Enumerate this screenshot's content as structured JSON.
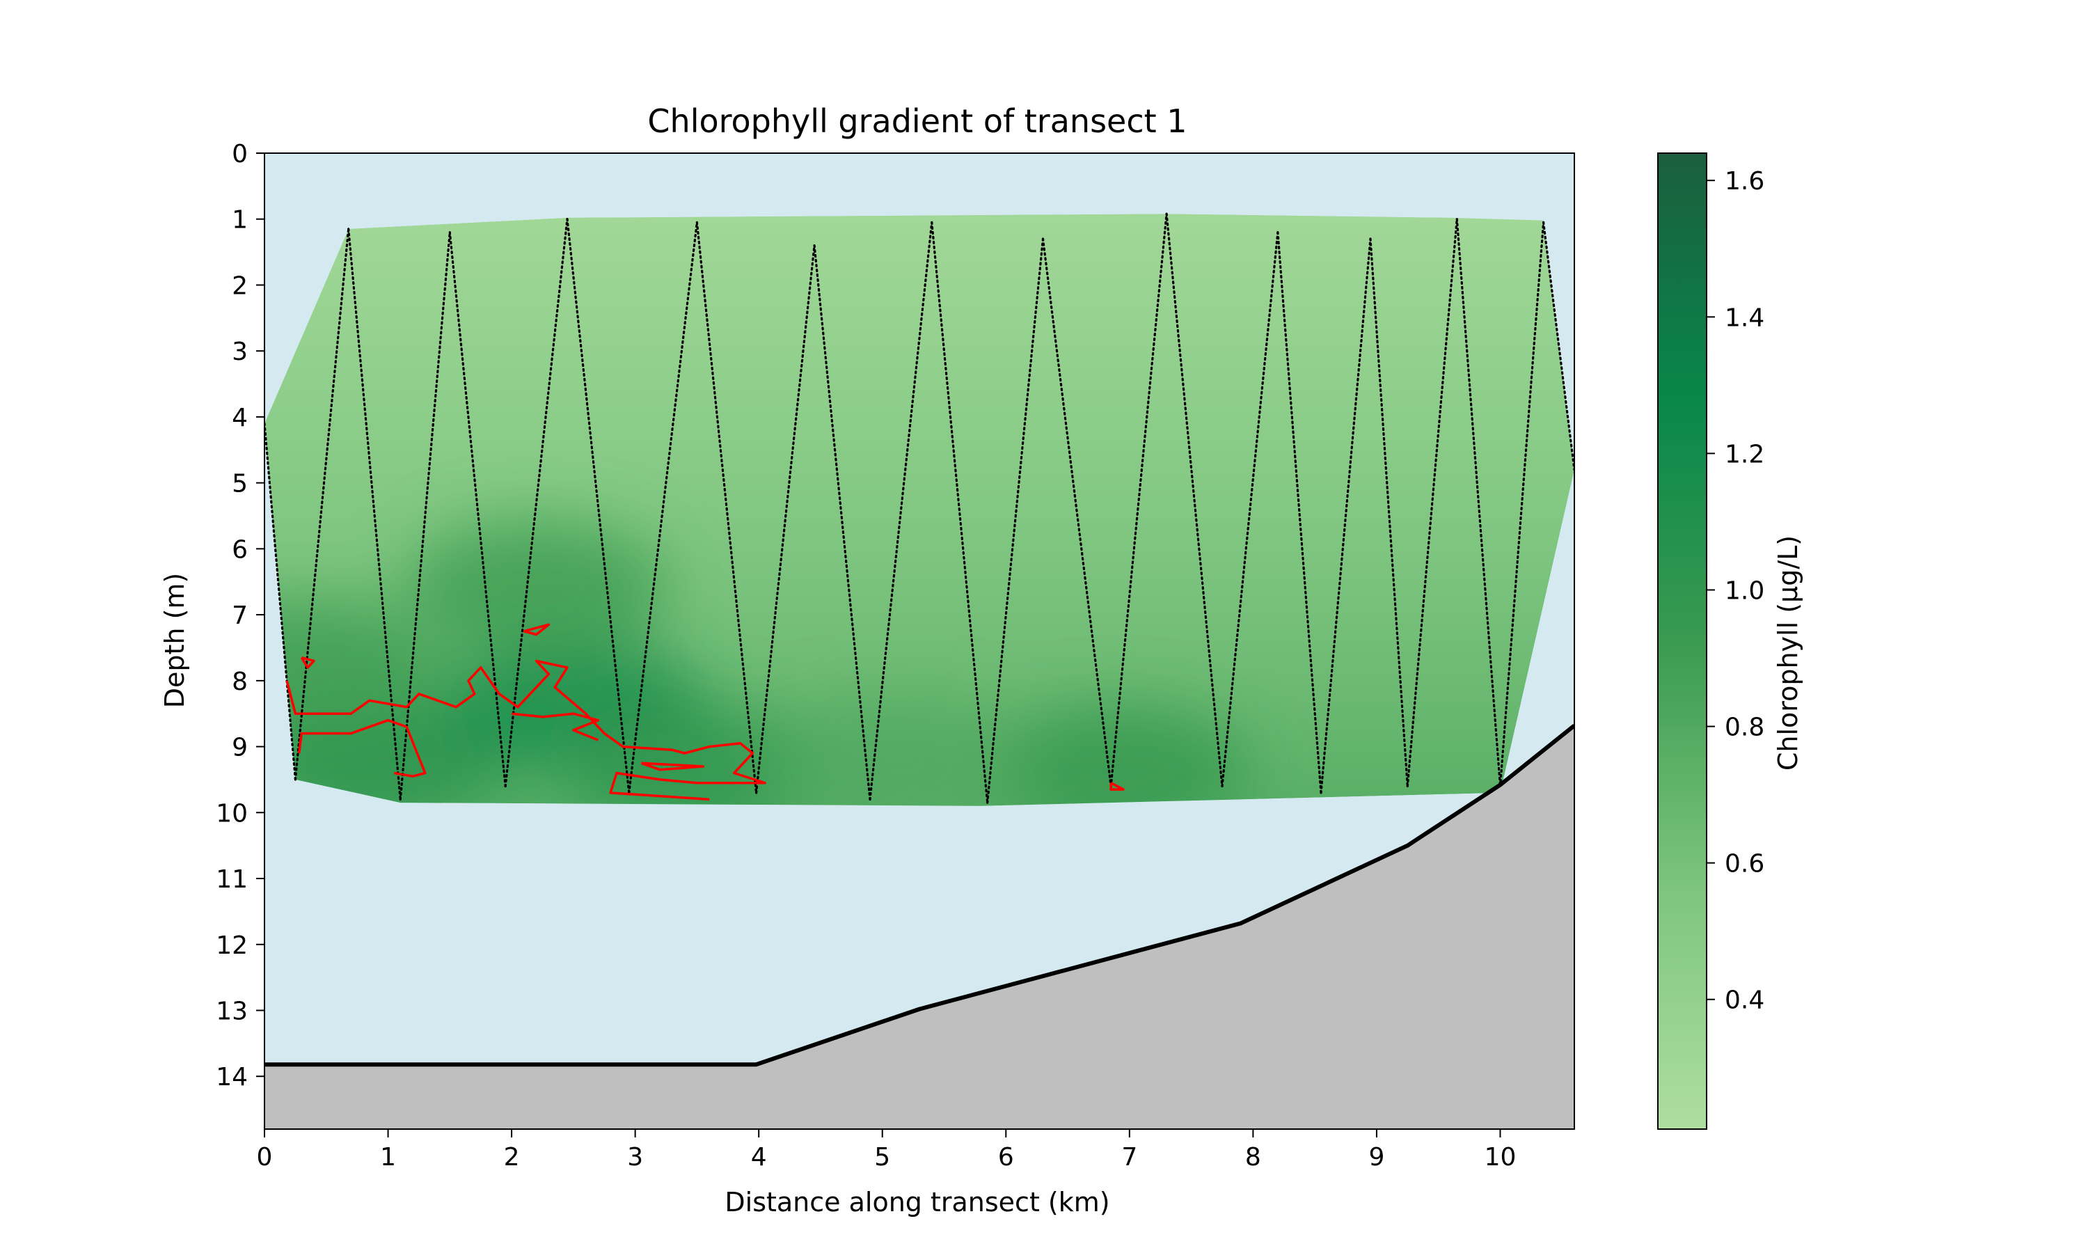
{
  "chart_data": {
    "type": "heatmap",
    "title": "Chlorophyll gradient of transect 1",
    "xlabel": "Distance along transect (km)",
    "ylabel": "Depth (m)",
    "xlim": [
      0,
      10.6
    ],
    "ylim": [
      14.8,
      0
    ],
    "x_ticks": [
      "0",
      "1",
      "2",
      "3",
      "4",
      "5",
      "6",
      "7",
      "8",
      "9",
      "10"
    ],
    "y_ticks": [
      "0",
      "1",
      "2",
      "3",
      "4",
      "5",
      "6",
      "7",
      "8",
      "9",
      "10",
      "11",
      "12",
      "13",
      "14"
    ],
    "grid": false,
    "colorbar": {
      "label": "Chlorophyll (µg/L)",
      "range": [
        0.21,
        1.64
      ],
      "ticks": [
        "0.4",
        "0.6",
        "0.8",
        "1.0",
        "1.2",
        "1.4",
        "1.6"
      ],
      "colormap": [
        "#aedea0",
        "#7cc47e",
        "#3a9a50",
        "#08874a",
        "#1b5e3e"
      ]
    },
    "colors": {
      "water": "#d4eaf0",
      "seabed": "#bfbfbf",
      "bathymetry_line": "#000000",
      "contour": "#ff0000",
      "profile_track": "#000000"
    },
    "chlorophyll_field": {
      "outline": [
        [
          0.0,
          4.1
        ],
        [
          0.68,
          1.15
        ],
        [
          2.45,
          0.98
        ],
        [
          7.3,
          0.92
        ],
        [
          9.6,
          0.98
        ],
        [
          10.35,
          1.02
        ],
        [
          10.6,
          4.8
        ],
        [
          10.0,
          9.7
        ],
        [
          5.8,
          9.9
        ],
        [
          1.1,
          9.85
        ],
        [
          0.25,
          9.5
        ],
        [
          0.0,
          4.1
        ]
      ],
      "background_value": 0.45,
      "gradient": [
        {
          "depth": 1.0,
          "value": 0.3
        },
        {
          "depth": 4.0,
          "value": 0.45
        },
        {
          "depth": 6.0,
          "value": 0.55
        },
        {
          "depth": 8.0,
          "value": 0.65
        },
        {
          "depth": 9.8,
          "value": 0.75
        }
      ],
      "hotspots": [
        {
          "x": 0.9,
          "depth": 9.2,
          "value": 1.05
        },
        {
          "x": 2.5,
          "depth": 8.4,
          "value": 1.15
        },
        {
          "x": 2.2,
          "depth": 6.6,
          "value": 0.9
        },
        {
          "x": 3.5,
          "depth": 9.4,
          "value": 1.0
        },
        {
          "x": 0.35,
          "depth": 7.8,
          "value": 0.9
        },
        {
          "x": 6.9,
          "depth": 9.4,
          "value": 0.95
        },
        {
          "x": 5.1,
          "depth": 9.3,
          "value": 0.8
        }
      ]
    },
    "profile_track": {
      "style": "dotted",
      "points": [
        [
          0.0,
          4.1
        ],
        [
          0.25,
          9.5
        ],
        [
          0.68,
          1.15
        ],
        [
          1.1,
          9.8
        ],
        [
          1.5,
          1.2
        ],
        [
          1.95,
          9.6
        ],
        [
          2.45,
          1.0
        ],
        [
          2.95,
          9.7
        ],
        [
          3.5,
          1.05
        ],
        [
          3.98,
          9.7
        ],
        [
          4.45,
          1.4
        ],
        [
          4.9,
          9.8
        ],
        [
          5.4,
          1.05
        ],
        [
          5.85,
          9.85
        ],
        [
          6.3,
          1.3
        ],
        [
          6.85,
          9.6
        ],
        [
          7.3,
          0.92
        ],
        [
          7.75,
          9.6
        ],
        [
          8.2,
          1.2
        ],
        [
          8.55,
          9.7
        ],
        [
          8.95,
          1.3
        ],
        [
          9.25,
          9.6
        ],
        [
          9.65,
          1.0
        ],
        [
          10.0,
          9.6
        ],
        [
          10.35,
          1.05
        ],
        [
          10.6,
          4.8
        ]
      ]
    },
    "contour_1_0": {
      "value": 1.0,
      "paths": [
        [
          [
            0.18,
            8.0
          ],
          [
            0.25,
            8.5
          ],
          [
            0.7,
            8.5
          ],
          [
            0.85,
            8.3
          ],
          [
            1.15,
            8.4
          ],
          [
            1.25,
            8.2
          ],
          [
            1.55,
            8.4
          ],
          [
            1.7,
            8.2
          ],
          [
            1.65,
            8.0
          ],
          [
            1.75,
            7.8
          ],
          [
            1.9,
            8.2
          ],
          [
            2.05,
            8.4
          ],
          [
            2.3,
            7.9
          ],
          [
            2.2,
            7.7
          ],
          [
            2.45,
            7.8
          ],
          [
            2.35,
            8.1
          ],
          [
            2.6,
            8.5
          ],
          [
            2.75,
            8.8
          ],
          [
            2.9,
            9.0
          ],
          [
            3.3,
            9.05
          ],
          [
            3.4,
            9.1
          ],
          [
            3.6,
            9.0
          ],
          [
            3.85,
            8.95
          ],
          [
            3.95,
            9.1
          ],
          [
            3.8,
            9.4
          ],
          [
            4.05,
            9.55
          ],
          [
            3.5,
            9.55
          ],
          [
            3.2,
            9.5
          ],
          [
            2.85,
            9.4
          ],
          [
            2.8,
            9.7
          ],
          [
            3.2,
            9.75
          ],
          [
            3.6,
            9.8
          ]
        ],
        [
          [
            0.28,
            9.1
          ],
          [
            0.3,
            8.8
          ],
          [
            0.7,
            8.8
          ],
          [
            1.0,
            8.6
          ],
          [
            1.15,
            8.7
          ],
          [
            1.3,
            9.4
          ],
          [
            1.2,
            9.45
          ],
          [
            1.05,
            9.4
          ]
        ],
        [
          [
            2.0,
            8.5
          ],
          [
            2.25,
            8.55
          ],
          [
            2.5,
            8.5
          ],
          [
            2.7,
            8.6
          ],
          [
            2.5,
            8.75
          ],
          [
            2.7,
            8.9
          ]
        ],
        [
          [
            2.1,
            7.25
          ],
          [
            2.3,
            7.15
          ],
          [
            2.2,
            7.3
          ],
          [
            2.1,
            7.25
          ]
        ],
        [
          [
            0.3,
            7.65
          ],
          [
            0.4,
            7.7
          ],
          [
            0.35,
            7.8
          ],
          [
            0.3,
            7.65
          ]
        ],
        [
          [
            6.85,
            9.55
          ],
          [
            6.95,
            9.65
          ],
          [
            6.85,
            9.65
          ],
          [
            6.85,
            9.55
          ]
        ],
        [
          [
            3.05,
            9.25
          ],
          [
            3.55,
            9.3
          ],
          [
            3.2,
            9.35
          ],
          [
            3.05,
            9.25
          ]
        ]
      ]
    },
    "bathymetry": {
      "x": [
        0.0,
        3.98,
        5.3,
        7.9,
        9.25,
        10.0,
        10.6
      ],
      "depth": [
        13.82,
        13.82,
        12.98,
        11.68,
        10.5,
        9.58,
        8.68
      ]
    }
  }
}
